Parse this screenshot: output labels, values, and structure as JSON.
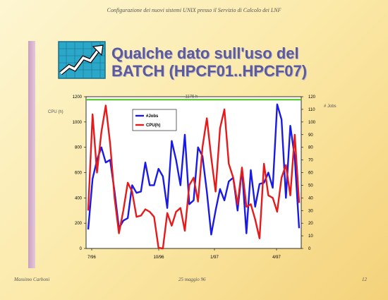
{
  "header": {
    "text": "Configurazione dei nuovi sistemi UNIX presso il Servizio di Calcolo dei LNF"
  },
  "title": {
    "line1": "Qualche dato sull'uso del",
    "line2": "BATCH (HPCF01..HPCF07)"
  },
  "footer": {
    "author": "Massimo Carboni",
    "date": "25 maggio 96",
    "page": "12"
  },
  "colors": {
    "jobs": "#1a1ae6",
    "cpu": "#e61a1a",
    "ref_line": "#4dc21a"
  },
  "chart_data": {
    "type": "line",
    "x_tick_labels": [
      "7/96",
      "10/96",
      "1/97",
      "4/97"
    ],
    "left_axis": {
      "label": "CPU (h)",
      "ylim": [
        0,
        1200
      ],
      "ticks": [
        "0",
        "200",
        "400",
        "600",
        "800",
        "1000",
        "1200"
      ]
    },
    "right_axis": {
      "label": "# Jobs",
      "ylim": [
        0,
        120
      ],
      "ticks": [
        "0",
        "10",
        "20",
        "30",
        "40",
        "50",
        "60",
        "70",
        "80",
        "90",
        "100",
        "110",
        "120"
      ]
    },
    "reference_line": {
      "label": "1176 h",
      "value": 1176,
      "axis": "left"
    },
    "legend": {
      "placement": "top-left"
    },
    "series": [
      {
        "name": "#Jobs",
        "axis": "right",
        "values": [
          15,
          55,
          70,
          80,
          68,
          70,
          45,
          16,
          22,
          24,
          50,
          44,
          45,
          68,
          50,
          50,
          63,
          57,
          32,
          85,
          70,
          50,
          90,
          35,
          38,
          80,
          73,
          45,
          11,
          30,
          47,
          38,
          53,
          56,
          30,
          63,
          12,
          62,
          33,
          51,
          52,
          60,
          48,
          114,
          102,
          40,
          97,
          72,
          16
        ]
      },
      {
        "name": "CPU(h)",
        "axis": "left",
        "values": [
          300,
          1060,
          600,
          920,
          1130,
          830,
          400,
          120,
          300,
          520,
          450,
          250,
          260,
          310,
          290,
          250,
          5,
          0,
          280,
          180,
          290,
          320,
          140,
          500,
          560,
          370,
          800,
          1030,
          720,
          450,
          950,
          1100,
          670,
          560,
          350,
          640,
          330,
          350,
          230,
          80,
          670,
          420,
          400,
          290,
          560,
          660,
          420,
          900,
          360
        ]
      }
    ]
  }
}
